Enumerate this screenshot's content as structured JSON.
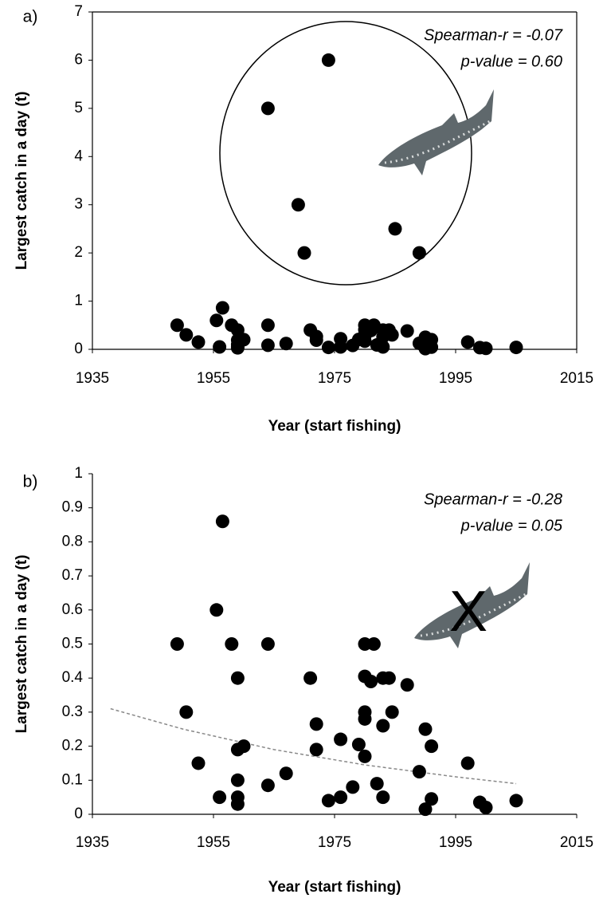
{
  "chart_data": [
    {
      "type": "scatter",
      "panel_label": "a)",
      "xlabel": "Year (start fishing)",
      "ylabel": "Largest catch in a day (t)",
      "annotations": [
        "Spearman-r = -0.07",
        "p-value = 0.60"
      ],
      "x": [
        1974,
        1964,
        1969,
        1970,
        1985,
        1989,
        1949,
        1950.5,
        1952.5,
        1955.5,
        1956,
        1956.5,
        1958,
        1959,
        1959,
        1959,
        1959,
        1959,
        1960,
        1964,
        1964,
        1967,
        1971,
        1972,
        1972,
        1974,
        1976,
        1976,
        1978,
        1979,
        1980,
        1980,
        1980,
        1980,
        1980,
        1981,
        1981.5,
        1982,
        1983,
        1983,
        1983,
        1984,
        1984.5,
        1987,
        1989,
        1990,
        1990,
        1991,
        1991,
        1997,
        1999,
        2000,
        2005
      ],
      "values": [
        6,
        5,
        3,
        2,
        2.5,
        2,
        0.5,
        0.3,
        0.15,
        0.6,
        0.05,
        0.86,
        0.5,
        0.19,
        0.4,
        0.1,
        0.05,
        0.03,
        0.2,
        0.5,
        0.085,
        0.12,
        0.4,
        0.265,
        0.19,
        0.04,
        0.22,
        0.05,
        0.08,
        0.205,
        0.5,
        0.405,
        0.3,
        0.28,
        0.17,
        0.39,
        0.5,
        0.09,
        0.4,
        0.26,
        0.05,
        0.4,
        0.3,
        0.38,
        0.125,
        0.25,
        0.015,
        0.2,
        0.045,
        0.15,
        0.035,
        0.02,
        0.04
      ],
      "color": "#000000",
      "xlim": [
        1935,
        2015
      ],
      "xticks": [
        1935,
        1955,
        1975,
        1995,
        2015
      ],
      "ylim": [
        0,
        7
      ],
      "yticks": [
        0,
        1,
        2,
        3,
        4,
        5,
        6,
        7
      ],
      "frame": true
    },
    {
      "type": "scatter",
      "panel_label": "b)",
      "xlabel": "Year (start fishing)",
      "ylabel": "Largest catch in a day (t)",
      "annotations": [
        "Spearman-r = -0.28",
        "p-value = 0.05"
      ],
      "marker_text": "X",
      "x": [
        1949,
        1950.5,
        1952.5,
        1955.5,
        1956,
        1956.5,
        1958,
        1959,
        1959,
        1959,
        1959,
        1959,
        1960,
        1964,
        1964,
        1967,
        1971,
        1972,
        1972,
        1974,
        1976,
        1976,
        1978,
        1979,
        1980,
        1980,
        1980,
        1980,
        1980,
        1981,
        1981.5,
        1982,
        1983,
        1983,
        1983,
        1984,
        1984.5,
        1987,
        1989,
        1990,
        1990,
        1991,
        1991,
        1997,
        1999,
        2000,
        2005
      ],
      "values": [
        0.5,
        0.3,
        0.15,
        0.6,
        0.05,
        0.86,
        0.5,
        0.19,
        0.4,
        0.1,
        0.05,
        0.03,
        0.2,
        0.5,
        0.085,
        0.12,
        0.4,
        0.265,
        0.19,
        0.04,
        0.22,
        0.05,
        0.08,
        0.205,
        0.5,
        0.405,
        0.3,
        0.28,
        0.17,
        0.39,
        0.5,
        0.09,
        0.4,
        0.26,
        0.05,
        0.4,
        0.3,
        0.38,
        0.125,
        0.25,
        0.015,
        0.2,
        0.045,
        0.15,
        0.035,
        0.02,
        0.04
      ],
      "color": "#000000",
      "trend": {
        "x": [
          1938,
          1950,
          1965,
          1980,
          1995,
          2005
        ],
        "values": [
          0.31,
          0.25,
          0.19,
          0.145,
          0.11,
          0.09
        ],
        "color": "#888888"
      },
      "xlim": [
        1935,
        2015
      ],
      "xticks": [
        1935,
        1955,
        1975,
        1995,
        2015
      ],
      "ylim": [
        0,
        1
      ],
      "yticks": [
        0,
        0.1,
        0.2,
        0.3,
        0.4,
        0.5,
        0.6,
        0.7,
        0.8,
        0.9,
        1
      ],
      "frame": false
    }
  ]
}
